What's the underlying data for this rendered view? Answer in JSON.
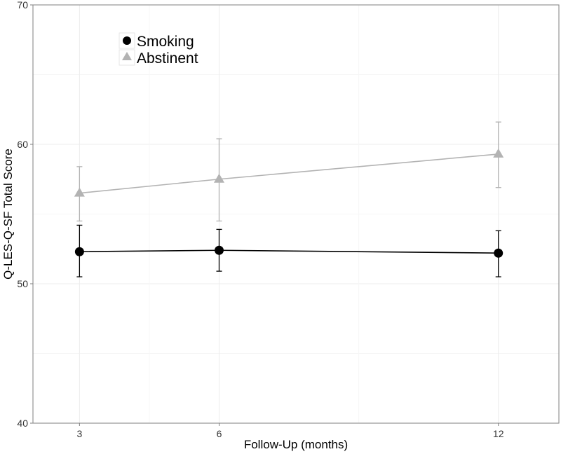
{
  "chart_data": {
    "type": "line",
    "title": "",
    "xlabel": "Follow-Up (months)",
    "ylabel": "Q-LES-Q-SF Total Score",
    "x": [
      3,
      6,
      12
    ],
    "x_ticks": [
      "3",
      "6",
      "12"
    ],
    "xlim": [
      2.0,
      13.3
    ],
    "y_ticks": [
      "40",
      "50",
      "60",
      "70"
    ],
    "ylim": [
      40,
      70
    ],
    "grid": true,
    "legend_position": "top-left",
    "series": [
      {
        "name": "Smoking",
        "marker": "circle",
        "color": "#000000",
        "values": [
          52.3,
          52.4,
          52.2
        ],
        "error_low": [
          50.5,
          50.9,
          50.5
        ],
        "error_high": [
          54.2,
          53.9,
          53.8
        ]
      },
      {
        "name": "Abstinent",
        "marker": "triangle",
        "color": "#b3b3b3",
        "values": [
          56.5,
          57.5,
          59.3
        ],
        "error_low": [
          54.5,
          54.5,
          56.9
        ],
        "error_high": [
          58.4,
          60.4,
          61.6
        ]
      }
    ]
  }
}
